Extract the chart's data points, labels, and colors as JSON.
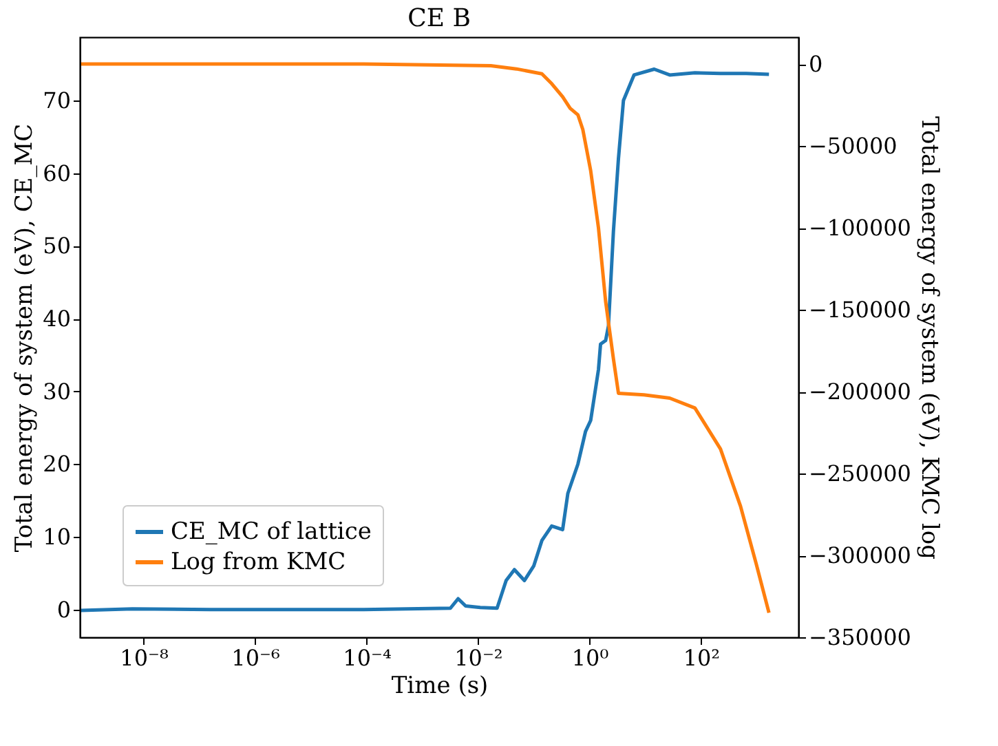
{
  "chart_data": {
    "type": "line",
    "title": "CE B",
    "xlabel": "Time (s)",
    "ylabel": "Total energy of system (eV), CE_MC",
    "y2label": "Total energy of system (eV), KMC log",
    "log": "x",
    "grid": false,
    "legend": "bottom left",
    "marker": "none",
    "line_style": "solid",
    "xlim": [
      7.2e-10,
      5600
    ],
    "xticks": [
      {
        "value": 1e-08,
        "label": "10⁻⁸"
      },
      {
        "value": 1e-06,
        "label": "10⁻⁶"
      },
      {
        "value": 0.0001,
        "label": "10⁻⁴"
      },
      {
        "value": 0.01,
        "label": "10⁻²"
      },
      {
        "value": 1,
        "label": "10⁰"
      },
      {
        "value": 100,
        "label": "10²"
      }
    ],
    "ylim": [
      -3.8,
      78.7
    ],
    "yticks": [
      0,
      10,
      20,
      30,
      40,
      50,
      60,
      70
    ],
    "y2lim": [
      -350000,
      16400
    ],
    "y2ticks": [
      0,
      -50000,
      -100000,
      -150000,
      -200000,
      -250000,
      -300000,
      -350000
    ],
    "series": [
      {
        "name": "CE_MC of lattice",
        "color": "#1f77b4",
        "x": [
          7.6e-10,
          6.3e-09,
          1.6e-07,
          8.9e-05,
          0.0032,
          0.0044,
          0.006,
          0.011,
          0.022,
          0.032,
          0.045,
          0.068,
          0.1,
          0.14,
          0.21,
          0.33,
          0.41,
          0.62,
          0.85,
          1.05,
          1.45,
          1.58,
          1.95,
          2.19,
          2.69,
          3.31,
          4.07,
          6.3,
          14.5,
          27.5,
          78,
          224,
          646,
          1660
        ],
        "values": [
          -0.1,
          0.1,
          0,
          0,
          0.2,
          1.5,
          0.5,
          0.3,
          0.2,
          4.0,
          5.5,
          4.0,
          6.0,
          9.5,
          11.5,
          11.0,
          16.0,
          20.0,
          24.5,
          26,
          33,
          36.5,
          37,
          39,
          52,
          62,
          70,
          73.5,
          74.3,
          73.5,
          73.8,
          73.7,
          73.7,
          73.6
        ]
      },
      {
        "name": "Log from KMC",
        "color": "#ff7f0e",
        "axis": "y2",
        "x": [
          7.6e-10,
          8.9e-05,
          0.017,
          0.049,
          0.14,
          0.21,
          0.33,
          0.45,
          0.62,
          0.76,
          1.05,
          1.45,
          1.95,
          2.69,
          3.31,
          9.5,
          27.5,
          78,
          224,
          513,
          977,
          1660
        ],
        "values": [
          0,
          0,
          -1000,
          -3000,
          -6000,
          -12000,
          -20000,
          -27000,
          -31000,
          -40000,
          -65000,
          -100000,
          -145000,
          -180000,
          -201000,
          -202000,
          -204000,
          -210000,
          -235000,
          -270000,
          -305000,
          -335000
        ]
      }
    ]
  }
}
